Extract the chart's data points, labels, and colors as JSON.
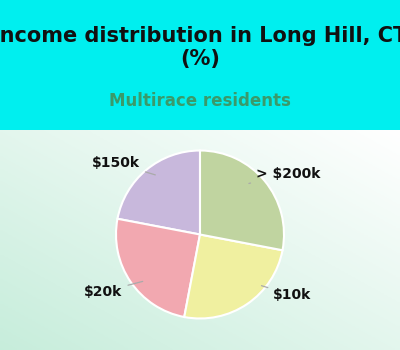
{
  "title": "Income distribution in Long Hill, CT\n(%)",
  "subtitle": "Multirace residents",
  "labels": [
    "> $200k",
    "$150k",
    "$20k",
    "$10k"
  ],
  "values": [
    22,
    25,
    25,
    28
  ],
  "colors": [
    "#c8b8dc",
    "#f2a8b0",
    "#f0f0a0",
    "#c0d4a0"
  ],
  "startangle": 90,
  "bg_color": "#00efef",
  "title_fontsize": 15,
  "subtitle_fontsize": 12,
  "subtitle_color": "#3a9a6a",
  "label_fontsize": 10
}
